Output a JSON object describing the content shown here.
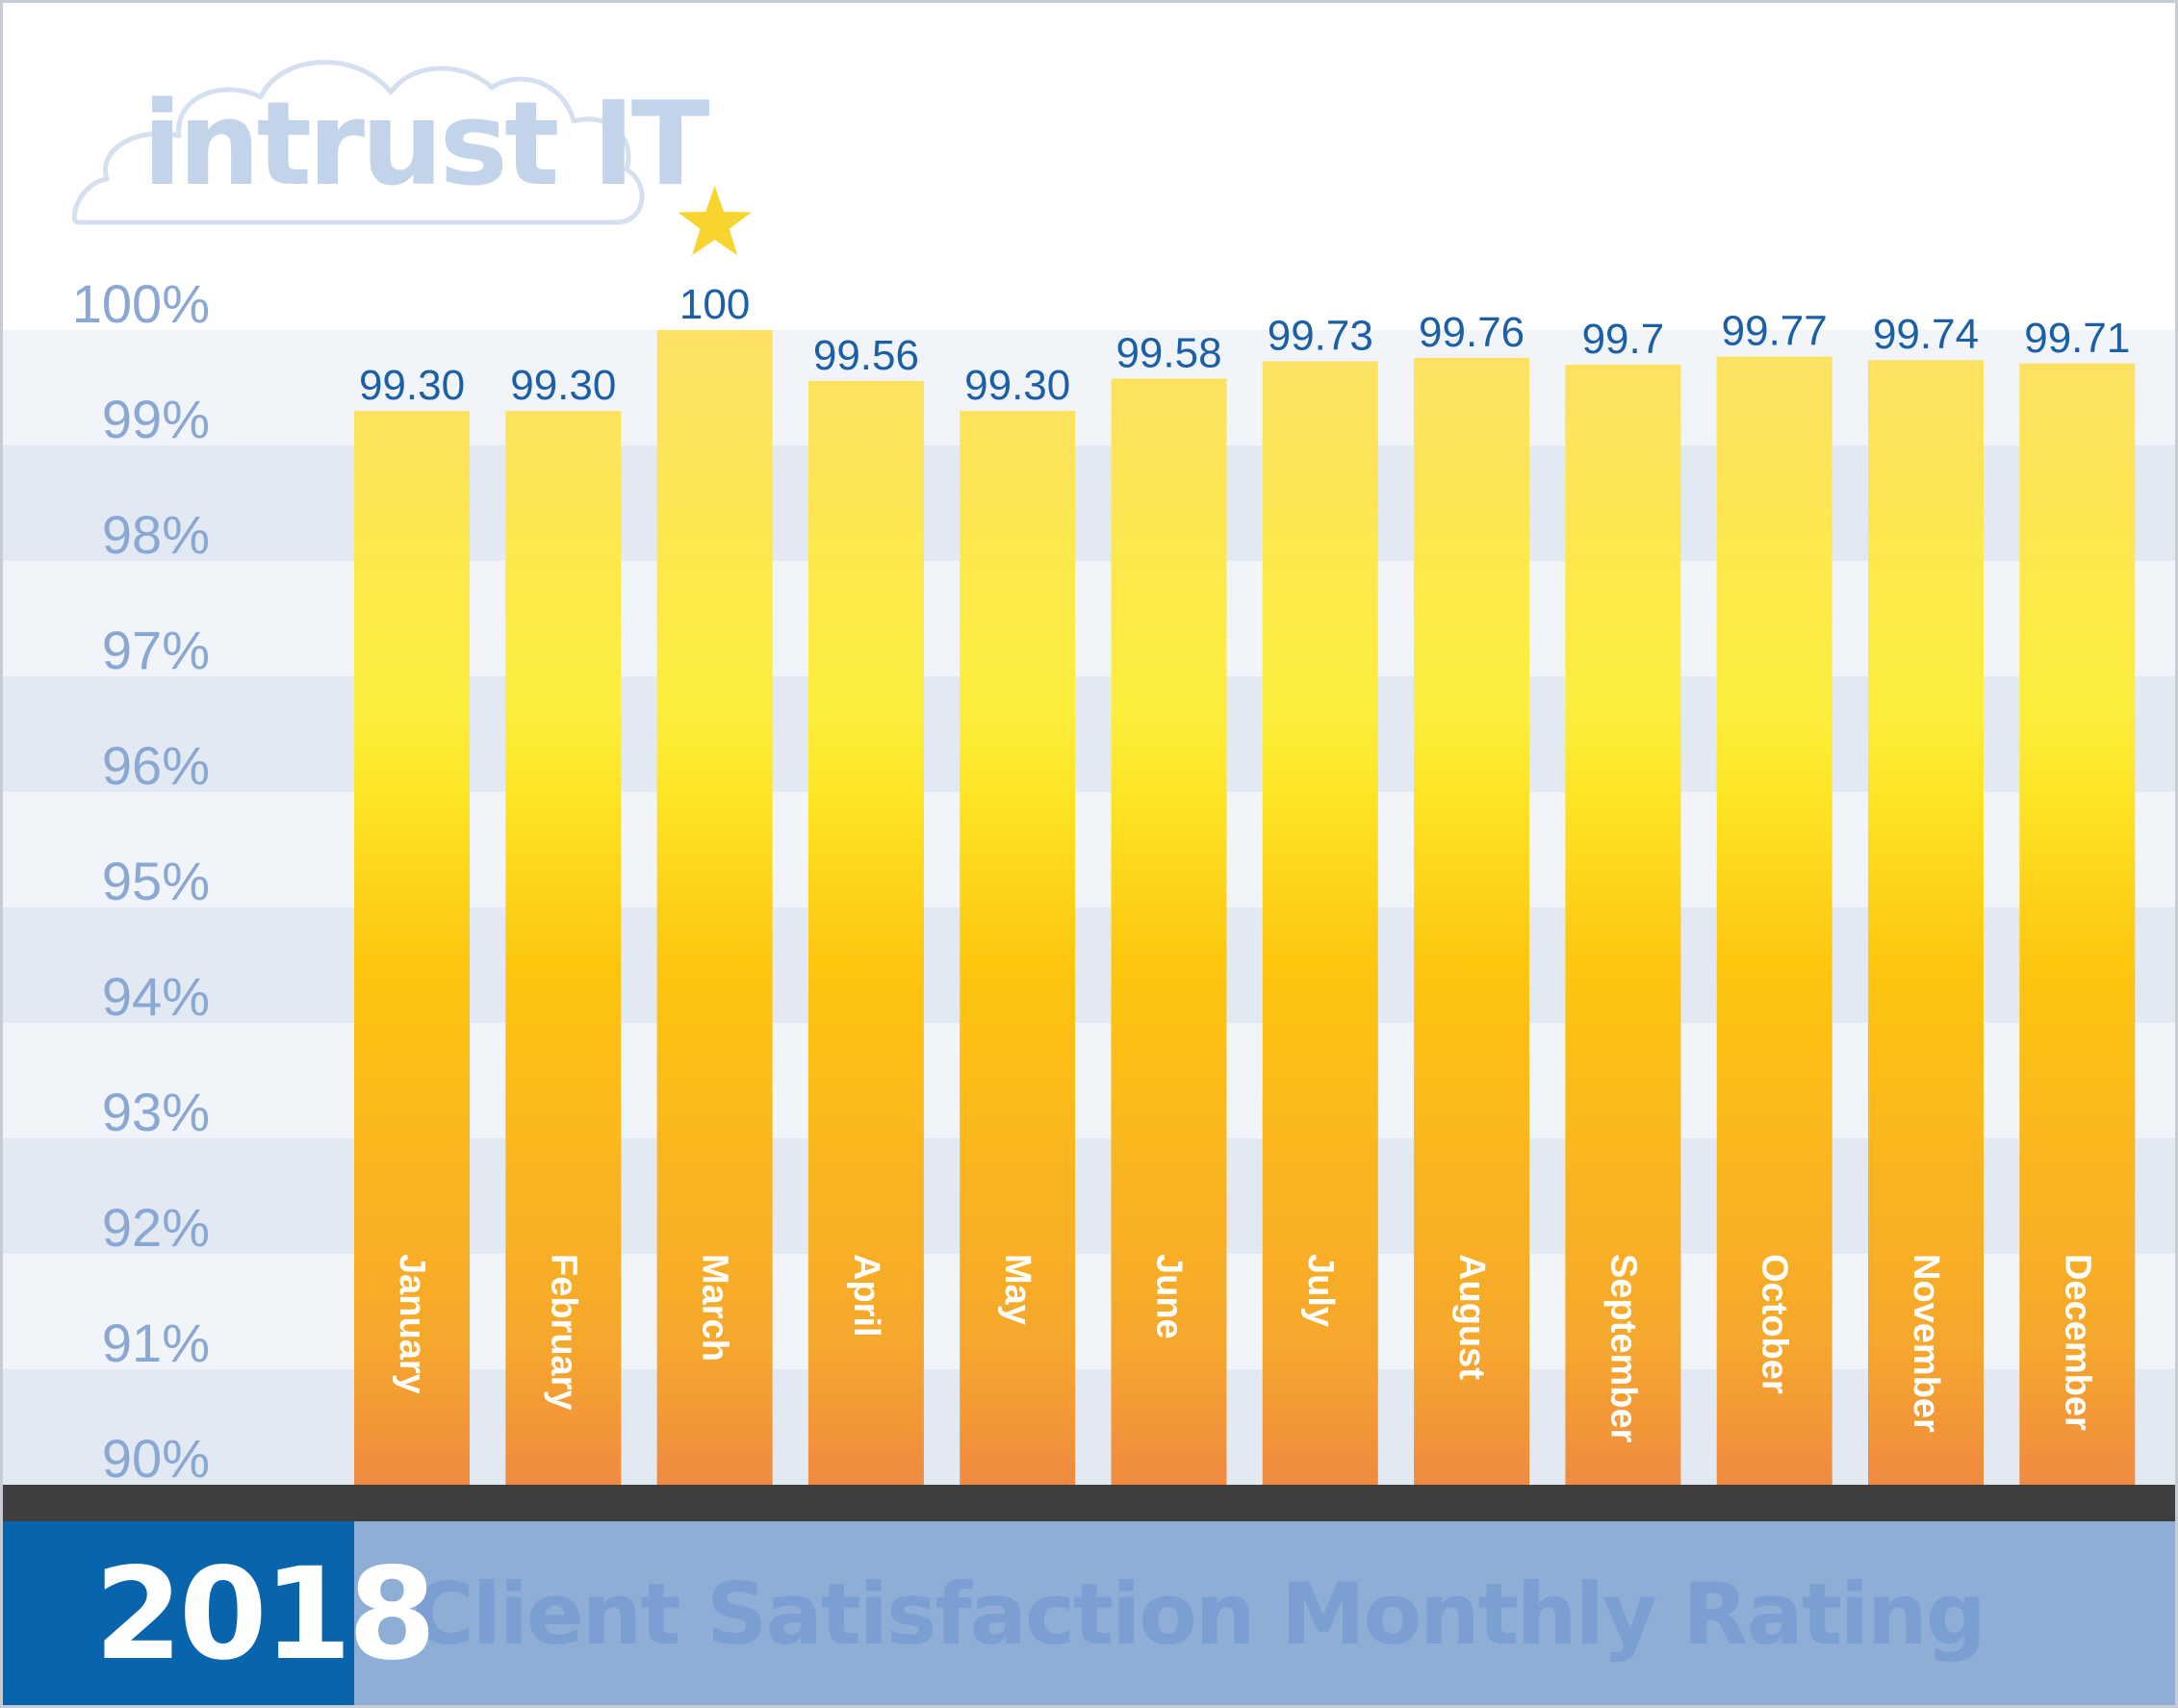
{
  "brand": {
    "logo_text": "intrust IT",
    "colors": {
      "logo": "#c3d4ea",
      "value_label": "#1b5fa6",
      "axis_label": "#8aa8d4",
      "band_light": "#f1f4f9",
      "band_dark": "#e3e9f3",
      "bar_top": "#fde066",
      "bar_mid": "#fdeb3b",
      "bar_lower": "#fdc60f",
      "bar_bottom": "#f08a40",
      "axis_bar": "#3f3f3f",
      "footer_bg": "#8eaed6",
      "year_box": "#0865ad",
      "title_text": "#7b9fd2",
      "star": "#f8d42e"
    }
  },
  "footer": {
    "year": "2018",
    "title": "Client Satisfaction Monthly Rating"
  },
  "chart_data": {
    "type": "bar",
    "title": "Client Satisfaction Monthly Rating",
    "xlabel": "",
    "ylabel": "",
    "ylim": [
      90,
      100
    ],
    "y_ticks": [
      "90%",
      "91%",
      "92%",
      "93%",
      "94%",
      "95%",
      "96%",
      "97%",
      "98%",
      "99%",
      "100%"
    ],
    "grid": "alternating horizontal bands",
    "categories": [
      "January",
      "February",
      "March",
      "April",
      "May",
      "June",
      "July",
      "August",
      "September",
      "October",
      "November",
      "December"
    ],
    "values": [
      99.3,
      99.3,
      100,
      99.56,
      99.3,
      99.58,
      99.73,
      99.76,
      99.7,
      99.77,
      99.74,
      99.71
    ],
    "value_labels": [
      "99.30",
      "99.30",
      "100",
      "99.56",
      "99.30",
      "99.58",
      "99.73",
      "99.76",
      "99.7",
      "99.77",
      "99.74",
      "99.71"
    ],
    "highlight": {
      "category": "March",
      "marker": "star"
    }
  }
}
